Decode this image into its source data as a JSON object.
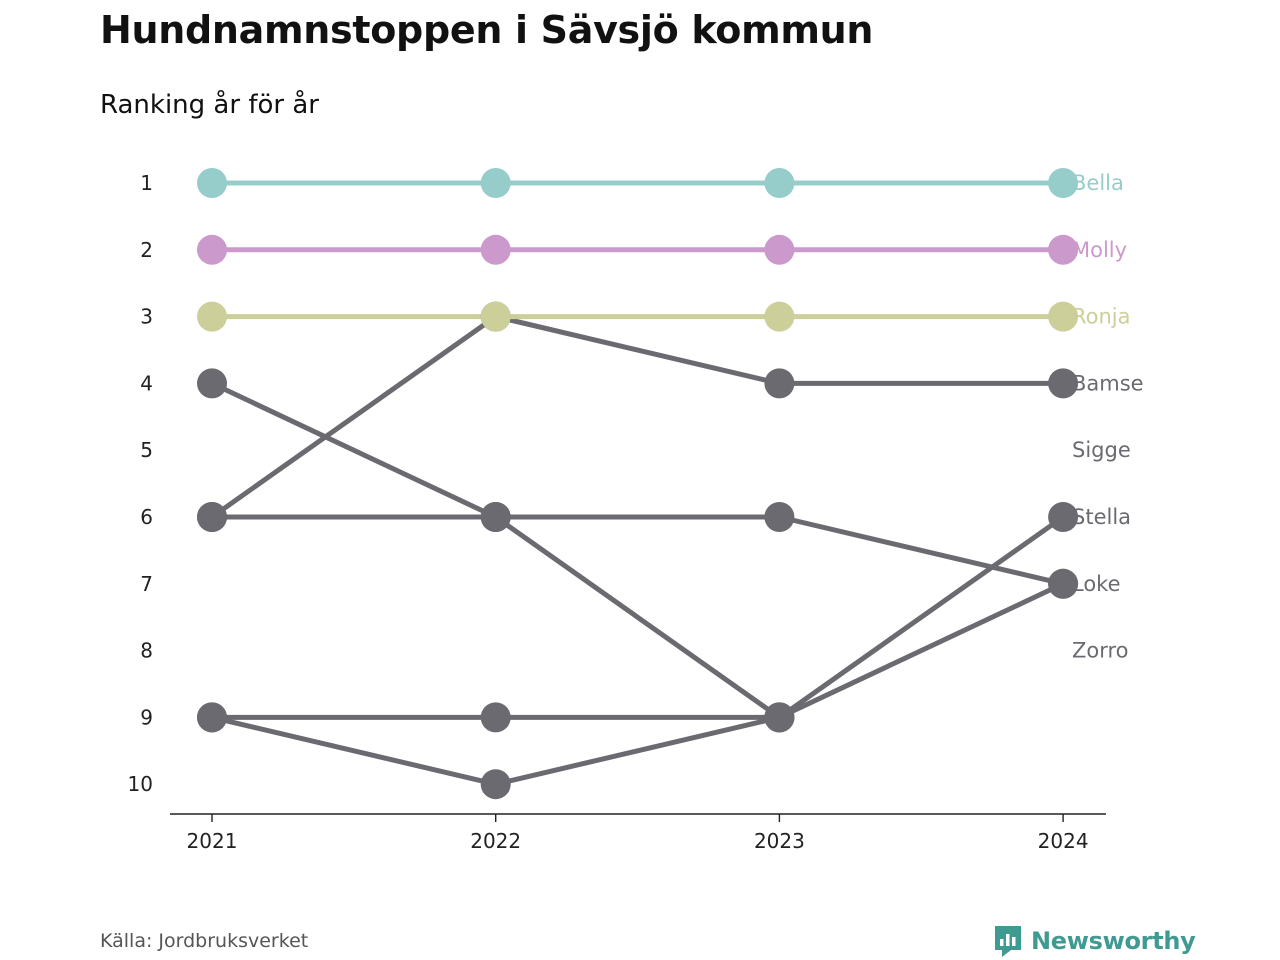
{
  "title": "Hundnamnstoppen i Sävsjö kommun",
  "subtitle": "Ranking år för år",
  "source": "Källa: Jordbruksverket",
  "brand": "Newsworthy",
  "chart_data": {
    "type": "line",
    "x": [
      "2021",
      "2022",
      "2023",
      "2024"
    ],
    "y_ticks": [
      1,
      2,
      3,
      4,
      5,
      6,
      7,
      8,
      9,
      10
    ],
    "ylim": [
      1,
      10
    ],
    "y_reversed": true,
    "grid": false,
    "legend": "end-labels-right",
    "series": [
      {
        "name": "Bella",
        "values": [
          1,
          1,
          1,
          1
        ],
        "color": "#96cdcb",
        "highlight": true
      },
      {
        "name": "Molly",
        "values": [
          2,
          2,
          2,
          2
        ],
        "color": "#cc99cc",
        "highlight": true
      },
      {
        "name": "Ronja",
        "values": [
          3,
          3,
          3,
          3
        ],
        "color": "#cccf9a",
        "highlight": true
      },
      {
        "name": "Bamse",
        "values": [
          6,
          3,
          4,
          4
        ],
        "color": "#6b6a70",
        "highlight": false
      },
      {
        "name": "Sigge",
        "values": [
          9,
          9,
          9,
          null
        ],
        "color": "#6b6a70",
        "highlight": false
      },
      {
        "name": "Stella",
        "values": [
          9,
          10,
          9,
          6
        ],
        "color": "#6b6a70",
        "highlight": false
      },
      {
        "name": "Loke",
        "values": [
          4,
          6,
          6,
          7
        ],
        "color": "#6b6a70",
        "highlight": false
      },
      {
        "name": "Zorro",
        "values": [
          6,
          6,
          9,
          7
        ],
        "color": "#6b6a70",
        "highlight": false
      }
    ],
    "end_labels": [
      {
        "name": "Bella",
        "rank": 1,
        "color": "#96cdcb"
      },
      {
        "name": "Molly",
        "rank": 2,
        "color": "#cc99cc"
      },
      {
        "name": "Ronja",
        "rank": 3,
        "color": "#cccf9a"
      },
      {
        "name": "Bamse",
        "rank": 4,
        "color": "#6b6a70"
      },
      {
        "name": "Sigge",
        "rank": 5,
        "color": "#6b6a70"
      },
      {
        "name": "Stella",
        "rank": 6,
        "color": "#6b6a70"
      },
      {
        "name": "Loke",
        "rank": 7,
        "color": "#6b6a70"
      },
      {
        "name": "Zorro",
        "rank": 8,
        "color": "#6b6a70"
      }
    ]
  }
}
